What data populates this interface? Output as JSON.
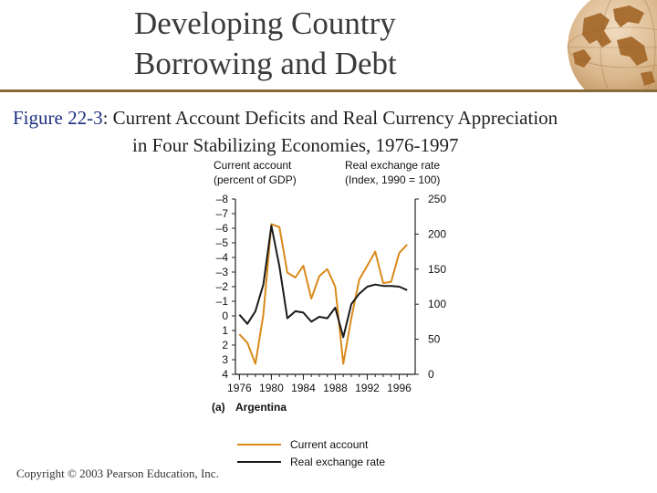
{
  "slide": {
    "title_line1": "Developing Country",
    "title_line2": "Borrowing and Debt",
    "caption_figure": "Figure 22-3",
    "caption_line1": ": Current Account Deficits and Real Currency Appreciation",
    "caption_line2": "in Four Stabilizing Economies, 1976-1997",
    "copyright": "Copyright © 2003 Pearson Education, Inc."
  },
  "colors": {
    "current_account": "#d98a1a",
    "real_exchange_rate": "#1a1a1a",
    "axis": "#222222",
    "title_rule": "#8a6a3a",
    "globe": "#a66a2c"
  },
  "chart_data": {
    "type": "line",
    "panel_label": "(a)",
    "panel_name": "Argentina",
    "left_axis": {
      "label_line1": "Current account",
      "label_line2": "(percent of GDP)",
      "ticks": [
        "–8",
        "–7",
        "–6",
        "–5",
        "–4",
        "–3",
        "–2",
        "–1",
        "0",
        "1",
        "2",
        "3",
        "4"
      ],
      "range": [
        -8,
        4
      ],
      "inverted": true
    },
    "right_axis": {
      "label_line1": "Real exchange rate",
      "label_line2": "(Index, 1990 = 100)",
      "ticks": [
        "250",
        "200",
        "150",
        "100",
        "50",
        "0"
      ],
      "range": [
        0,
        250
      ]
    },
    "x_ticks": [
      "1976",
      "1980",
      "1984",
      "1988",
      "1992",
      "1996"
    ],
    "x_range": [
      1975.5,
      1998
    ],
    "series": [
      {
        "name": "Current account",
        "axis": "right",
        "x": [
          1976,
          1977,
          1978,
          1979,
          1980,
          1981,
          1982,
          1983,
          1984,
          1985,
          1986,
          1987,
          1988,
          1989,
          1990,
          1991,
          1992,
          1993,
          1994,
          1995,
          1996,
          1997
        ],
        "values": [
          57,
          45,
          15,
          85,
          214,
          210,
          145,
          138,
          155,
          108,
          140,
          150,
          125,
          15,
          80,
          135,
          155,
          175,
          130,
          132,
          173,
          185
        ]
      },
      {
        "name": "Real exchange rate",
        "axis": "right",
        "x": [
          1976,
          1977,
          1978,
          1979,
          1980,
          1981,
          1982,
          1983,
          1984,
          1985,
          1986,
          1987,
          1988,
          1989,
          1990,
          1991,
          1992,
          1993,
          1994,
          1995,
          1996,
          1997
        ],
        "values": [
          85,
          72,
          90,
          128,
          212,
          154,
          80,
          90,
          88,
          75,
          82,
          80,
          95,
          53,
          100,
          115,
          125,
          128,
          126,
          126,
          125,
          120
        ]
      }
    ]
  }
}
